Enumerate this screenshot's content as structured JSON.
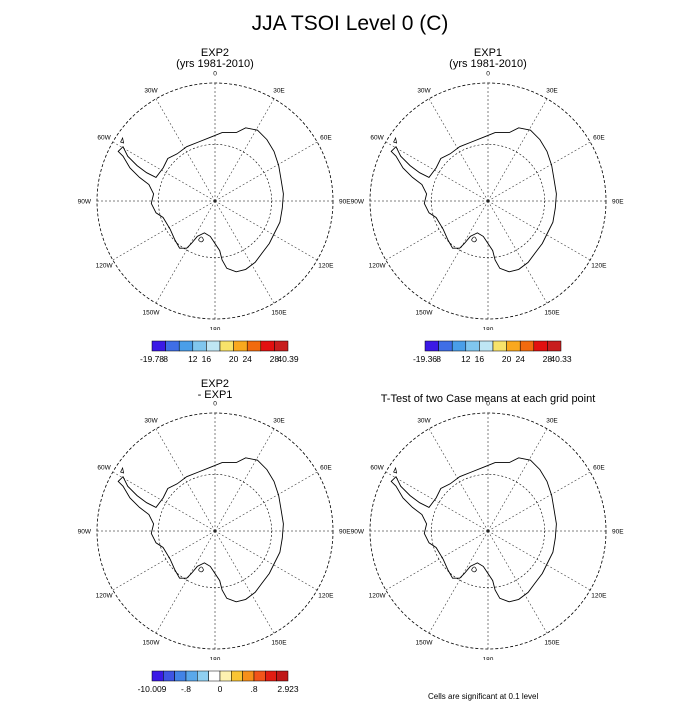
{
  "title": "JJA TSOI Level 0 (C)",
  "panels": [
    {
      "id": "p1",
      "title_line1": "EXP2",
      "title_line2": "(yrs 1981-2010)"
    },
    {
      "id": "p2",
      "title_line1": "EXP1",
      "title_line2": "(yrs 1981-2010)"
    },
    {
      "id": "p3",
      "title_line1": "EXP2",
      "title_line2": "- EXP1"
    },
    {
      "id": "p4",
      "title_line1": "T-Test of two Case means at each grid point",
      "title_line2": ""
    }
  ],
  "map_labels": {
    "top": "0",
    "bottom": "180",
    "left": "90W",
    "right": "90E",
    "upper_left_1": "30W",
    "upper_left_2": "60W",
    "upper_right_1": "30E",
    "upper_right_2": "60E",
    "lower_left_1": "120W",
    "lower_left_2": "150W",
    "lower_right_1": "120E",
    "lower_right_2": "150E"
  },
  "colorbars": [
    {
      "colors": [
        "#3b19e6",
        "#3f6ee6",
        "#4a9ee8",
        "#80c6ee",
        "#bfe6f4",
        "#f7e36a",
        "#f9a81e",
        "#f26a0e",
        "#e21010",
        "#c81e1e"
      ],
      "labels": [
        "-19.78",
        "8",
        "12",
        "16",
        "20",
        "24",
        "28",
        "40.39"
      ]
    },
    {
      "colors": [
        "#3b19e6",
        "#3f6ee6",
        "#4a9ee8",
        "#80c6ee",
        "#bfe6f4",
        "#f7e36a",
        "#f9a81e",
        "#f26a0e",
        "#e21010",
        "#c81e1e"
      ],
      "labels": [
        "-19.36",
        "8",
        "12",
        "16",
        "20",
        "24",
        "28",
        "40.33"
      ]
    },
    {
      "colors": [
        "#3b19e6",
        "#3e54e3",
        "#4283e6",
        "#5aa8ea",
        "#8fcff1",
        "#ffffff",
        "#fdf2b0",
        "#f9c534",
        "#f7901a",
        "#f2541a",
        "#e21d12",
        "#c01818"
      ],
      "labels": [
        "-10.009",
        "-.8",
        "0",
        ".8",
        "2.923"
      ]
    }
  ],
  "footnote": "Cells are significant at 0.1 level"
}
